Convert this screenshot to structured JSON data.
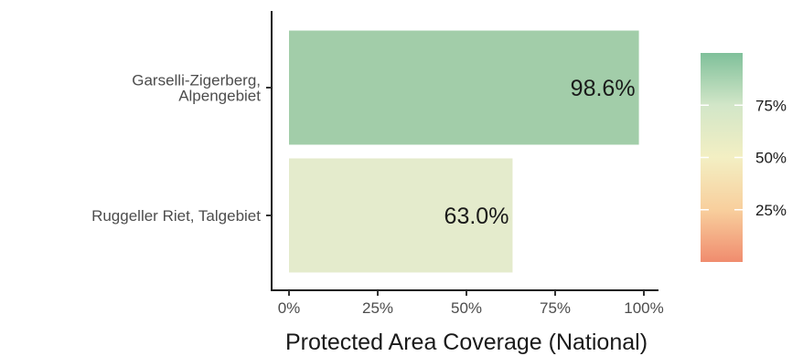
{
  "chart_data": {
    "type": "bar",
    "orientation": "horizontal",
    "categories": [
      [
        "Garselli-Zigerberg,",
        "Alpengebiet"
      ],
      [
        "Ruggeller Riet, Talgebiet"
      ]
    ],
    "values": [
      98.6,
      63.0
    ],
    "data_labels": [
      "98.6%",
      "63.0%"
    ],
    "bar_colors": [
      "#a2cda9",
      "#e4ebcc"
    ],
    "xlabel": "Protected Area Coverage (National)",
    "xlim": [
      0,
      100
    ],
    "x_ticks": [
      0,
      25,
      50,
      75,
      100
    ],
    "x_tick_labels": [
      "0%",
      "25%",
      "50%",
      "75%",
      "100%"
    ],
    "grid": false,
    "legend": {
      "position": "right",
      "type": "colorbar",
      "range": [
        0,
        100
      ],
      "ticks": [
        25,
        50,
        75
      ],
      "tick_labels": [
        "25%",
        "50%",
        "75%"
      ],
      "colors": [
        "#f08c6e",
        "#f8cf9d",
        "#f3efc3",
        "#d2e6c8",
        "#7fc09a"
      ]
    }
  }
}
